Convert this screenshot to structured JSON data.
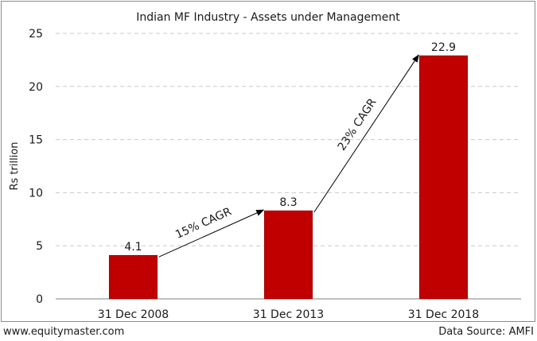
{
  "footer": {
    "website": "www.equitymaster.com",
    "source": "Data Source: AMFI"
  },
  "colors": {
    "bar": "#c00000",
    "grid": "#c8c8c8",
    "axis": "#7f7f7f",
    "text": "#1a1a1a"
  },
  "chart_data": {
    "type": "bar",
    "title": "Indian MF Industry - Assets under Management",
    "xlabel": "",
    "ylabel": "Rs trillion",
    "categories": [
      "31 Dec 2008",
      "31 Dec 2013",
      "31 Dec 2018"
    ],
    "values": [
      4.1,
      8.3,
      22.9
    ],
    "data_labels": [
      "4.1",
      "8.3",
      "22.9"
    ],
    "ylim": [
      0,
      25
    ],
    "yticks": [
      0,
      5,
      10,
      15,
      20,
      25
    ],
    "grid": true,
    "annotations": [
      {
        "text": "15% CAGR",
        "from": 0,
        "to": 1
      },
      {
        "text": "23% CAGR",
        "from": 1,
        "to": 2
      }
    ]
  }
}
